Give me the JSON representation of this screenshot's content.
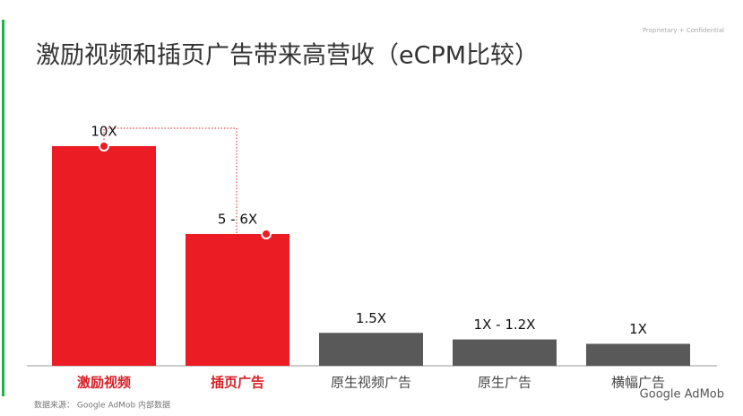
{
  "chart_data": {
    "type": "bar",
    "title": "激励视频和插页广告带来高营收（eCPM比较）",
    "categories": [
      "激励视频",
      "插页广告",
      "原生视频广告",
      "原生广告",
      "横幅广告"
    ],
    "values": [
      10,
      6,
      1.5,
      1.2,
      1
    ],
    "value_labels": [
      "10X",
      "5 - 6X",
      "1.5X",
      "1X - 1.2X",
      "1X"
    ],
    "colors": [
      "#ec1c24",
      "#ec1c24",
      "#595959",
      "#595959",
      "#595959"
    ],
    "label_colors": [
      "#d81f26",
      "#d81f26",
      "#444444",
      "#444444",
      "#444444"
    ]
  },
  "header": {
    "notice": "Proprietary + Confidential"
  },
  "footer": {
    "source": "数据来源： Google AdMob 内部数据",
    "logo": "Google AdMob"
  }
}
